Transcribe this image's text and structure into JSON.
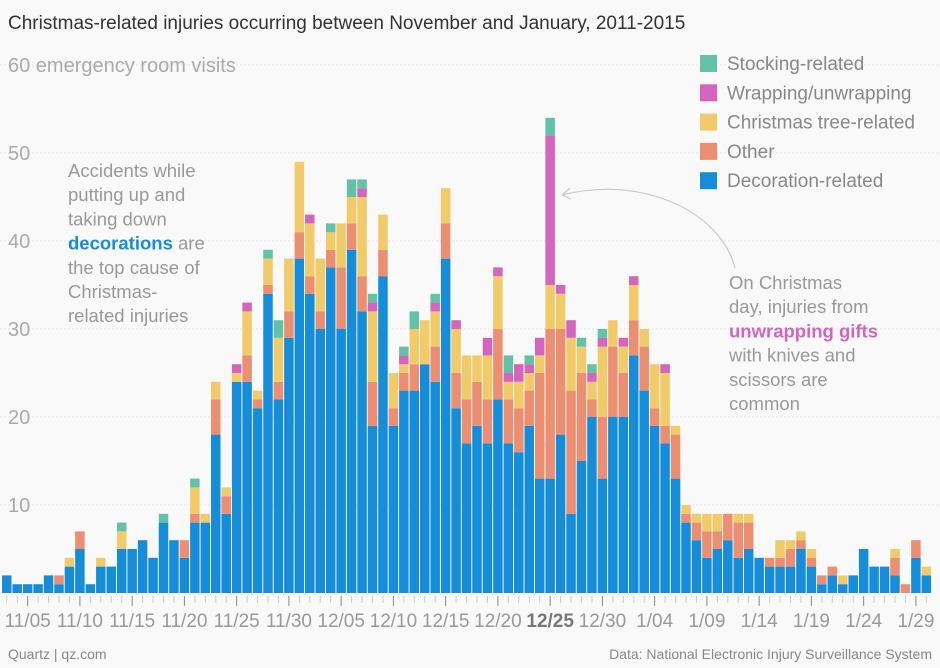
{
  "chart_data": {
    "type": "bar",
    "stacked": true,
    "title": "Christmas-related injuries occurring between November and January, 2011-2015",
    "ylabel": "emergency room visits",
    "ylim": [
      0,
      60
    ],
    "yticks": [
      10,
      20,
      30,
      40,
      50,
      60
    ],
    "ytick_top_label": "60 emergency room visits",
    "grid": true,
    "legend_position": "top-right",
    "x": [
      "11/03",
      "11/04",
      "11/05",
      "11/06",
      "11/07",
      "11/08",
      "11/09",
      "11/10",
      "11/11",
      "11/12",
      "11/13",
      "11/14",
      "11/15",
      "11/16",
      "11/17",
      "11/18",
      "11/19",
      "11/20",
      "11/21",
      "11/22",
      "11/23",
      "11/24",
      "11/25",
      "11/26",
      "11/27",
      "11/28",
      "11/29",
      "11/30",
      "12/01",
      "12/02",
      "12/03",
      "12/04",
      "12/05",
      "12/06",
      "12/07",
      "12/08",
      "12/09",
      "12/10",
      "12/11",
      "12/12",
      "12/13",
      "12/14",
      "12/15",
      "12/16",
      "12/17",
      "12/18",
      "12/19",
      "12/20",
      "12/21",
      "12/22",
      "12/23",
      "12/24",
      "12/25",
      "12/26",
      "12/27",
      "12/28",
      "12/29",
      "12/30",
      "12/31",
      "1/01",
      "1/02",
      "1/03",
      "1/04",
      "1/05",
      "1/06",
      "1/07",
      "1/08",
      "1/09",
      "1/10",
      "1/11",
      "1/12",
      "1/13",
      "1/14",
      "1/15",
      "1/16",
      "1/17",
      "1/18",
      "1/19",
      "1/20",
      "1/21",
      "1/22",
      "1/23",
      "1/24",
      "1/25",
      "1/26",
      "1/27",
      "1/28",
      "1/29",
      "1/30"
    ],
    "xtick_labels": [
      "11/05",
      "11/10",
      "11/15",
      "11/20",
      "11/25",
      "11/30",
      "12/05",
      "12/10",
      "12/15",
      "12/20",
      "12/25",
      "12/30",
      "1/04",
      "1/09",
      "1/14",
      "1/19",
      "1/24",
      "1/29"
    ],
    "xtick_highlight": "12/25",
    "series": [
      {
        "name": "Decoration-related",
        "color": "#168dd9",
        "values": [
          2,
          1,
          1,
          1,
          2,
          1,
          3,
          5,
          1,
          3,
          3,
          5,
          5,
          6,
          4,
          8,
          6,
          4,
          8,
          8,
          18,
          9,
          24,
          24,
          21,
          34,
          22,
          29,
          38,
          34,
          30,
          37,
          30,
          39,
          32,
          19,
          36,
          19,
          23,
          23,
          26,
          24,
          38,
          21,
          17,
          19,
          17,
          22,
          17,
          16,
          19,
          13,
          13,
          18,
          9,
          15,
          20,
          13,
          20,
          20,
          27,
          23,
          19,
          17,
          13,
          8,
          6,
          4,
          5,
          6,
          4,
          5,
          4,
          3,
          3,
          3,
          5,
          3,
          1,
          2,
          1,
          2,
          5,
          3,
          3,
          2,
          0,
          4,
          2
        ]
      },
      {
        "name": "Other",
        "color": "#eb8e71",
        "values": [
          0,
          0,
          0,
          0,
          0,
          1,
          0,
          2,
          0,
          0,
          0,
          0,
          0,
          0,
          0,
          0,
          0,
          2,
          1,
          0,
          4,
          2,
          0,
          3,
          1,
          1,
          2,
          3,
          3,
          2,
          2,
          2,
          7,
          3,
          4,
          5,
          3,
          2,
          2,
          3,
          0,
          4,
          4,
          4,
          5,
          5,
          5,
          8,
          5,
          5,
          4,
          12,
          17,
          12,
          14,
          10,
          2,
          7,
          8,
          5,
          4,
          5,
          2,
          2,
          5,
          1,
          2,
          3,
          2,
          3,
          4,
          3,
          0,
          1,
          1,
          2,
          1,
          1,
          1,
          1,
          0,
          0,
          0,
          0,
          0,
          2,
          1,
          2,
          0
        ]
      },
      {
        "name": "Christmas tree-related",
        "color": "#f1cb69",
        "values": [
          0,
          0,
          0,
          0,
          0,
          0,
          1,
          0,
          0,
          1,
          0,
          2,
          0,
          0,
          0,
          0,
          0,
          0,
          3,
          1,
          2,
          1,
          1,
          5,
          1,
          3,
          5,
          6,
          8,
          6,
          6,
          2,
          5,
          3,
          9,
          8,
          4,
          4,
          1,
          4,
          5,
          4,
          4,
          5,
          5,
          3,
          5,
          6,
          2,
          3,
          2,
          2,
          5,
          4,
          6,
          3,
          2,
          8,
          3,
          3,
          4,
          2,
          5,
          6,
          1,
          1,
          1,
          2,
          2,
          0,
          1,
          1,
          0,
          0,
          2,
          1,
          1,
          1,
          0,
          0,
          1,
          0,
          0,
          0,
          0,
          1,
          0,
          0,
          1
        ]
      },
      {
        "name": "Wrapping/unwrapping",
        "color": "#d465bc",
        "values": [
          0,
          0,
          0,
          0,
          0,
          0,
          0,
          0,
          0,
          0,
          0,
          0,
          0,
          0,
          0,
          0,
          0,
          0,
          0,
          0,
          0,
          0,
          1,
          1,
          0,
          0,
          0,
          0,
          0,
          1,
          0,
          0,
          0,
          0,
          1,
          1,
          0,
          0,
          1,
          0,
          0,
          1,
          0,
          1,
          0,
          0,
          2,
          1,
          1,
          2,
          1,
          2,
          17,
          1,
          2,
          0,
          1,
          1,
          0,
          1,
          1,
          0,
          0,
          1,
          0,
          0,
          0,
          0,
          0,
          0,
          0,
          0,
          0,
          0,
          0,
          0,
          0,
          0,
          0,
          0,
          0,
          0,
          0,
          0,
          0,
          0,
          0,
          0,
          0
        ]
      },
      {
        "name": "Stocking-related",
        "color": "#62c1a6",
        "values": [
          0,
          0,
          0,
          0,
          0,
          0,
          0,
          0,
          0,
          0,
          0,
          1,
          0,
          0,
          0,
          1,
          0,
          0,
          1,
          0,
          0,
          0,
          0,
          0,
          0,
          1,
          2,
          0,
          0,
          0,
          0,
          1,
          0,
          2,
          1,
          1,
          0,
          0,
          1,
          2,
          0,
          1,
          0,
          0,
          0,
          0,
          0,
          0,
          2,
          0,
          1,
          0,
          2,
          0,
          0,
          1,
          1,
          1,
          0,
          0,
          0,
          0,
          0,
          0,
          0,
          0,
          0,
          0,
          0,
          0,
          0,
          0,
          0,
          0,
          0,
          0,
          0,
          0,
          0,
          0,
          0,
          0,
          0,
          0,
          0,
          0,
          0,
          0,
          0
        ]
      }
    ],
    "legend_order": [
      "Stocking-related",
      "Wrapping/unwrapping",
      "Christmas tree-related",
      "Other",
      "Decoration-related"
    ],
    "annotations": {
      "left": {
        "lines": [
          [
            "Accidents while"
          ],
          [
            "putting up and"
          ],
          [
            "taking down"
          ],
          [
            "decorations",
            " are"
          ],
          [
            "the top cause of"
          ],
          [
            "Christmas-"
          ],
          [
            "related injuries"
          ]
        ],
        "highlight": "decorations",
        "highlight_color": "#168dd9"
      },
      "right": {
        "lines": [
          [
            "On Christmas"
          ],
          [
            "day, injuries from"
          ],
          [
            "unwrapping gifts"
          ],
          [
            "with knives and"
          ],
          [
            "scissors are"
          ],
          [
            "common"
          ]
        ],
        "highlight": "unwrapping gifts",
        "highlight_color": "#d465bc",
        "arrow_target": "12/25"
      }
    }
  },
  "footer": {
    "source_left": "Quartz | qz.com",
    "source_right": "Data: National Electronic Injury Surveillance System"
  }
}
